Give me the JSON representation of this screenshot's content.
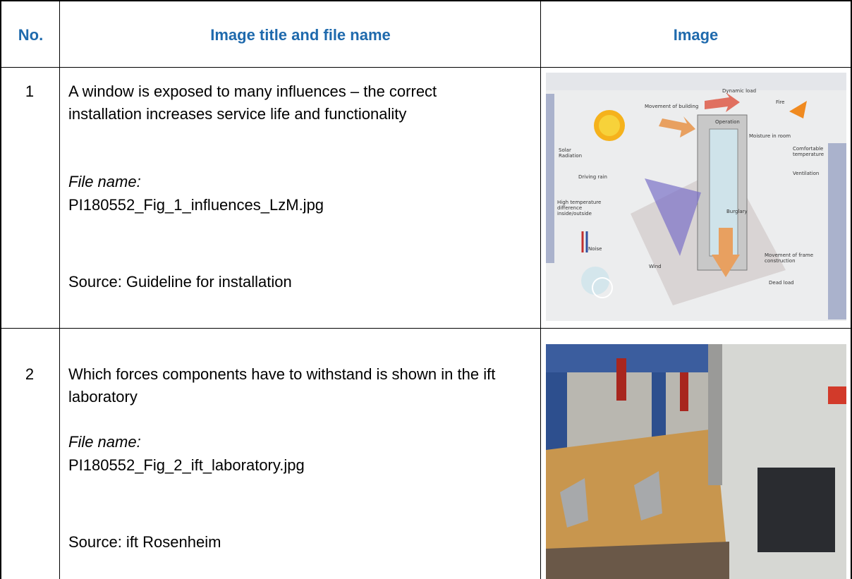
{
  "table": {
    "header": [
      "No.",
      "Image title and file name",
      "Image"
    ],
    "rows": [
      {
        "no": "1",
        "title": "A window is exposed to many influences – the correct installation increases service life and functionality",
        "file_label": "File name:",
        "file": "PI180552_Fig_1_influences_LzM.jpg",
        "source": "Source: Guideline for installation",
        "image_labels": [
          [
            "Dynamic load"
          ],
          [
            "Fire"
          ],
          [
            "Movement of building"
          ],
          [
            "Operation"
          ],
          [
            "Moisture in room"
          ],
          [
            "Comfortable",
            "temperature"
          ],
          [
            "Solar",
            "Radiation"
          ],
          [
            "Driving rain"
          ],
          [
            "Ventilation"
          ],
          [
            "High temperature",
            "difference",
            "inside/outside"
          ],
          [
            "Burglary"
          ],
          [
            "Noise"
          ],
          [
            "Movement of frame",
            "construction"
          ],
          [
            "Wind"
          ],
          [
            "Dead load"
          ]
        ]
      },
      {
        "no": "2",
        "title": "Which forces components have to withstand is shown in the ift laboratory",
        "file_label": "File name:",
        "file": "PI180552_Fig_2_ift_laboratory.jpg",
        "source": "Source: ift Rosenheim"
      }
    ]
  }
}
